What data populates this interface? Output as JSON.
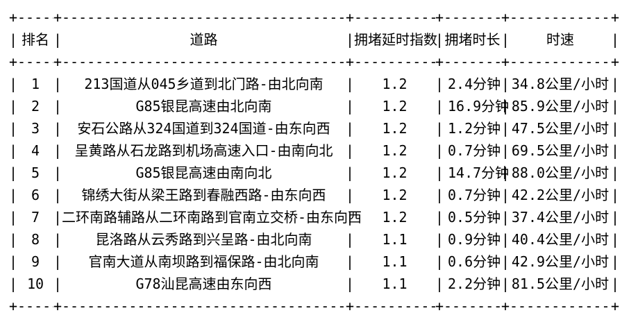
{
  "colors": {
    "background": "#ffffff",
    "text": "#000000"
  },
  "glyphs": {
    "pipe": "|",
    "plus": "+",
    "dash": "-"
  },
  "table": {
    "columns": [
      {
        "label": "排名"
      },
      {
        "label": "道路"
      },
      {
        "label": "拥堵延时指数"
      },
      {
        "label": "拥堵时长"
      },
      {
        "label": "时速"
      }
    ],
    "rows": [
      [
        "1",
        "213国道从045乡道到北门路-由北向南",
        "1.2",
        "2.4分钟",
        "34.8公里/小时"
      ],
      [
        "2",
        "G85银昆高速由北向南",
        "1.2",
        "16.9分钟",
        "85.9公里/小时"
      ],
      [
        "3",
        "安石公路从324国道到324国道-由东向西",
        "1.2",
        "1.2分钟",
        "47.5公里/小时"
      ],
      [
        "4",
        "呈黄路从石龙路到机场高速入口-由南向北",
        "1.2",
        "0.7分钟",
        "69.5公里/小时"
      ],
      [
        "5",
        "G85银昆高速由南向北",
        "1.2",
        "14.7分钟",
        "88.0公里/小时"
      ],
      [
        "6",
        "锦绣大街从梁王路到春融西路-由东向西",
        "1.2",
        "0.7分钟",
        "42.2公里/小时"
      ],
      [
        "7",
        "二环南路辅路从二环南路到官南立交桥-由东向西",
        "1.2",
        "0.5分钟",
        "37.4公里/小时"
      ],
      [
        "8",
        "昆洛路从云秀路到兴呈路-由北向南",
        "1.1",
        "0.9分钟",
        "40.4公里/小时"
      ],
      [
        "9",
        "官南大道从南坝路到福保路-由北向南",
        "1.1",
        "0.6分钟",
        "42.9公里/小时"
      ],
      [
        "10",
        "G78汕昆高速由东向西",
        "1.1",
        "2.2分钟",
        "81.5公里/小时"
      ]
    ]
  }
}
